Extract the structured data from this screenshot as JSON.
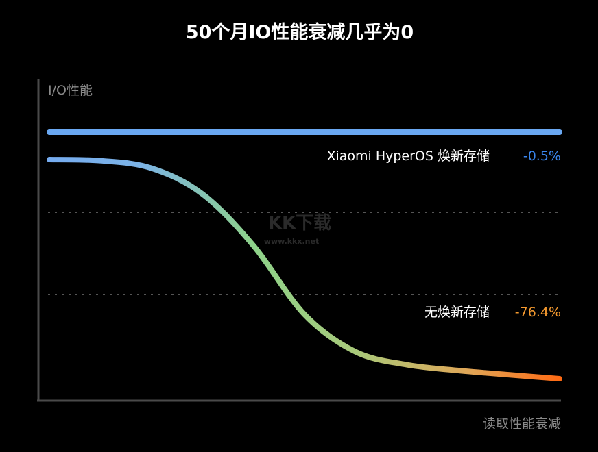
{
  "chart_data": {
    "type": "line",
    "title": "50个月IO性能衰减几乎为0",
    "ylabel": "I/O性能",
    "xlabel": "读取性能衰减",
    "grid": "dashed horizontal",
    "series": [
      {
        "name": "Xiaomi HyperOS 焕新存储",
        "change_label": "-0.5%",
        "change_percent": -0.5,
        "color": "#6aa8f2",
        "values": [
          100,
          99.5
        ]
      },
      {
        "name": "无焕新存储",
        "change_label": "-76.4%",
        "change_percent": -76.4,
        "color_start": "#76acf0",
        "color_mid": "#8ed28a",
        "color_end": "#ff6a13",
        "values": [
          100,
          99.6,
          97,
          88,
          70,
          46,
          33,
          28.5,
          26.5,
          25,
          23.6
        ]
      }
    ],
    "label_colors": {
      "blue": "#3a86ee",
      "orange": "#f59a2f"
    }
  },
  "watermark": {
    "brand": "KK下载",
    "url": "www.kkx.net"
  }
}
